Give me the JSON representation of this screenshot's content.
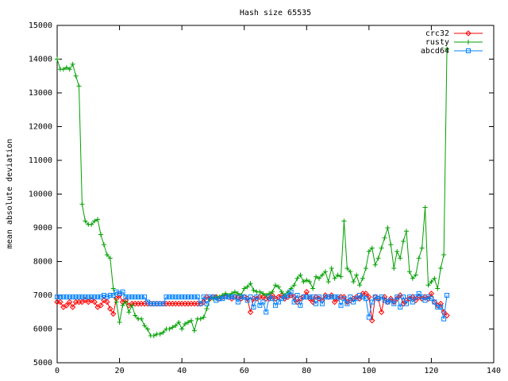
{
  "chart_data": {
    "type": "line",
    "title": "Hash size 65535",
    "y_label": "mean absolute deviation",
    "xlim": [
      0,
      140
    ],
    "xticks": [
      0,
      20,
      40,
      60,
      80,
      100,
      120,
      140
    ],
    "ylim": [
      5000,
      15000
    ],
    "yticks": [
      5000,
      6000,
      7000,
      8000,
      9000,
      10000,
      11000,
      12000,
      13000,
      14000,
      15000
    ],
    "grid": false,
    "legend": "top-right",
    "x": [
      0,
      1,
      2,
      3,
      4,
      5,
      6,
      7,
      8,
      9,
      10,
      11,
      12,
      13,
      14,
      15,
      16,
      17,
      18,
      19,
      20,
      21,
      22,
      23,
      24,
      25,
      26,
      27,
      28,
      29,
      30,
      31,
      32,
      33,
      34,
      35,
      36,
      37,
      38,
      39,
      40,
      41,
      42,
      43,
      44,
      45,
      46,
      47,
      48,
      49,
      50,
      51,
      52,
      53,
      54,
      55,
      56,
      57,
      58,
      59,
      60,
      61,
      62,
      63,
      64,
      65,
      66,
      67,
      68,
      69,
      70,
      71,
      72,
      73,
      74,
      75,
      76,
      77,
      78,
      79,
      80,
      81,
      82,
      83,
      84,
      85,
      86,
      87,
      88,
      89,
      90,
      91,
      92,
      93,
      94,
      95,
      96,
      97,
      98,
      99,
      100,
      101,
      102,
      103,
      104,
      105,
      106,
      107,
      108,
      109,
      110,
      111,
      112,
      113,
      114,
      115,
      116,
      117,
      118,
      119,
      120,
      121,
      122,
      123,
      124,
      125
    ],
    "series": [
      {
        "name": "crc32",
        "color": "#ff0000",
        "marker": "diamond",
        "values": [
          6800,
          6800,
          6650,
          6700,
          6800,
          6650,
          6800,
          6800,
          6800,
          6850,
          6800,
          6850,
          6800,
          6650,
          6700,
          6850,
          6800,
          6600,
          6450,
          6900,
          7000,
          6800,
          6850,
          6700,
          6750,
          6750,
          6750,
          6750,
          6750,
          6750,
          6750,
          6750,
          6750,
          6750,
          6750,
          6750,
          6750,
          6750,
          6750,
          6750,
          6750,
          6750,
          6750,
          6750,
          6750,
          6750,
          6750,
          6800,
          6950,
          6900,
          6950,
          6950,
          6900,
          6950,
          7000,
          6950,
          6900,
          6950,
          6950,
          6900,
          6950,
          6900,
          6500,
          6900,
          6900,
          6950,
          6950,
          6900,
          6900,
          7000,
          6900,
          6950,
          7000,
          6900,
          6950,
          7000,
          6950,
          6800,
          6900,
          6950,
          7100,
          6900,
          6800,
          6950,
          6900,
          6850,
          7000,
          6950,
          7000,
          6800,
          6900,
          6950,
          6950,
          6800,
          6850,
          6900,
          6950,
          6900,
          7050,
          7050,
          6950,
          6250,
          6950,
          6900,
          6500,
          6950,
          6800,
          6900,
          6800,
          6900,
          7000,
          6750,
          6850,
          6900,
          6950,
          6850,
          6950,
          6900,
          6950,
          6900,
          7050,
          6800,
          6700,
          6750,
          6500,
          6400
        ]
      },
      {
        "name": "rusty",
        "color": "#00a000",
        "marker": "plus",
        "values": [
          14000,
          13700,
          13700,
          13750,
          13700,
          13850,
          13500,
          13200,
          9700,
          9200,
          9100,
          9100,
          9200,
          9250,
          8800,
          8500,
          8200,
          8100,
          7200,
          6800,
          6200,
          6700,
          6800,
          6500,
          6700,
          6400,
          6300,
          6300,
          6100,
          6000,
          5800,
          5800,
          5850,
          5850,
          5900,
          6000,
          6000,
          6050,
          6100,
          6200,
          6000,
          6150,
          6200,
          6250,
          5950,
          6300,
          6300,
          6350,
          6600,
          6900,
          6900,
          6950,
          6950,
          7000,
          7050,
          7000,
          7050,
          7100,
          7050,
          7000,
          7200,
          7250,
          7350,
          7150,
          7100,
          7100,
          7050,
          7000,
          7050,
          7100,
          7300,
          7250,
          7100,
          7000,
          7100,
          7200,
          7300,
          7500,
          7600,
          7400,
          7450,
          7400,
          7200,
          7550,
          7500,
          7600,
          7700,
          7400,
          7800,
          7500,
          7600,
          7550,
          9200,
          7800,
          7700,
          7400,
          7600,
          7300,
          7500,
          7800,
          8300,
          8400,
          7900,
          8100,
          8400,
          8700,
          9000,
          8500,
          7800,
          8300,
          8100,
          8600,
          8900,
          7700,
          7500,
          7600,
          8100,
          8400,
          9600,
          7300,
          7400,
          7500,
          7200,
          7800,
          8200,
          14300
        ]
      },
      {
        "name": "abcd64",
        "color": "#0080ff",
        "marker": "square",
        "values": [
          6950,
          6950,
          6950,
          6950,
          6950,
          6950,
          6950,
          6950,
          6950,
          6950,
          6950,
          6950,
          6950,
          6950,
          6950,
          7000,
          6950,
          7000,
          7000,
          7100,
          7050,
          7100,
          6950,
          6950,
          6950,
          6950,
          6950,
          6950,
          6950,
          6800,
          6750,
          6750,
          6750,
          6750,
          6750,
          6950,
          6950,
          6950,
          6950,
          6950,
          6950,
          6950,
          6950,
          6950,
          6950,
          6950,
          6750,
          6950,
          6750,
          6950,
          6950,
          6850,
          6900,
          6900,
          6950,
          6950,
          6950,
          6950,
          6800,
          6950,
          6950,
          6850,
          6950,
          6650,
          6950,
          6700,
          6800,
          6500,
          6950,
          6900,
          6700,
          6800,
          6900,
          6950,
          7000,
          7100,
          6800,
          7000,
          6700,
          6950,
          6950,
          6950,
          6950,
          6750,
          6950,
          6750,
          6950,
          6950,
          6950,
          6950,
          6950,
          6700,
          6900,
          6750,
          6950,
          6800,
          6900,
          7000,
          6950,
          6900,
          6350,
          6800,
          6950,
          6900,
          6950,
          6850,
          6800,
          6850,
          6750,
          6950,
          6650,
          6950,
          6750,
          6950,
          6800,
          6950,
          7050,
          6950,
          6850,
          6950,
          6900,
          6800,
          6650,
          6650,
          6300,
          7000
        ]
      }
    ]
  }
}
